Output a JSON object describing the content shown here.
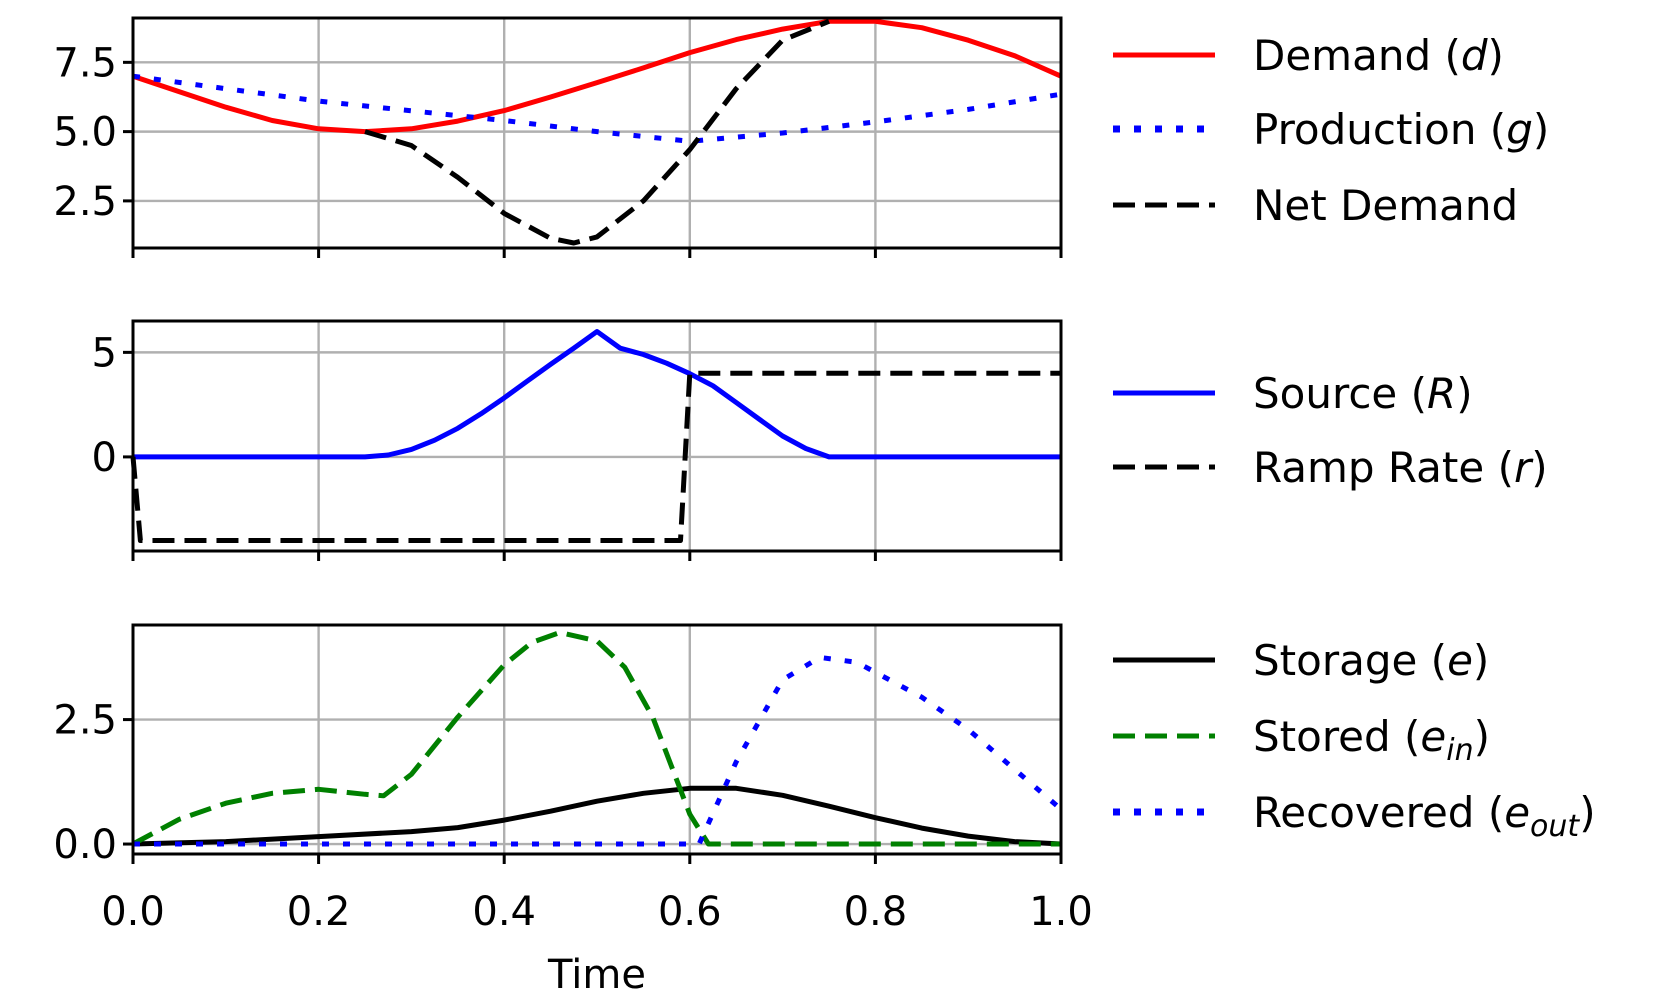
{
  "figure": {
    "xlabel": "Time",
    "x_ticks": [
      "0.0",
      "0.2",
      "0.4",
      "0.6",
      "0.8",
      "1.0"
    ]
  },
  "chart_data": [
    {
      "type": "line",
      "xlim": [
        0,
        1
      ],
      "ylim": [
        0.8,
        9.1
      ],
      "y_ticks": [
        2.5,
        5.0,
        7.5
      ],
      "y_tick_labels": [
        "2.5",
        "5.0",
        "7.5"
      ],
      "grid": true,
      "legend_placement": "right",
      "series": [
        {
          "name": "Demand (d)",
          "label_main": "Demand (",
          "label_var": "d",
          "label_sub": "",
          "label_end": ")",
          "color": "#ff0000",
          "style": "solid",
          "x": [
            0,
            0.05,
            0.1,
            0.15,
            0.2,
            0.25,
            0.3,
            0.35,
            0.4,
            0.45,
            0.5,
            0.55,
            0.6,
            0.65,
            0.7,
            0.75,
            0.8,
            0.85,
            0.9,
            0.95,
            1.0
          ],
          "y": [
            7.0,
            6.44,
            5.88,
            5.4,
            5.1,
            5.0,
            5.1,
            5.38,
            5.76,
            6.25,
            6.77,
            7.3,
            7.85,
            8.32,
            8.7,
            8.98,
            8.98,
            8.75,
            8.3,
            7.74,
            7.0
          ]
        },
        {
          "name": "Production (g)",
          "label_main": "Production (",
          "label_var": "g",
          "label_sub": "",
          "label_end": ")",
          "color": "#0000ff",
          "style": "dotted",
          "x": [
            0,
            0.1,
            0.2,
            0.3,
            0.4,
            0.5,
            0.6,
            0.7,
            0.8,
            0.9,
            1.0
          ],
          "y": [
            7.0,
            6.55,
            6.1,
            5.75,
            5.4,
            5.0,
            4.65,
            4.95,
            5.35,
            5.8,
            6.35
          ]
        },
        {
          "name": "Net Demand",
          "label_main": "Net Demand",
          "label_var": "",
          "label_sub": "",
          "label_end": "",
          "color": "#000000",
          "style": "dashed",
          "x": [
            0.25,
            0.3,
            0.35,
            0.4,
            0.45,
            0.475,
            0.5,
            0.55,
            0.6,
            0.65,
            0.7,
            0.75
          ],
          "y": [
            5.0,
            4.5,
            3.35,
            2.05,
            1.15,
            0.98,
            1.2,
            2.5,
            4.35,
            6.55,
            8.3,
            8.98
          ]
        }
      ]
    },
    {
      "type": "line",
      "xlim": [
        0,
        1
      ],
      "ylim": [
        -4.5,
        6.5
      ],
      "y_ticks": [
        0,
        5
      ],
      "y_tick_labels": [
        "0",
        "5"
      ],
      "grid": true,
      "legend_placement": "right",
      "series": [
        {
          "name": "Source (R)",
          "label_main": "Source (",
          "label_var": "R",
          "label_sub": "",
          "label_end": ")",
          "color": "#0000ff",
          "style": "solid",
          "x": [
            0,
            0.25,
            0.275,
            0.3,
            0.325,
            0.35,
            0.375,
            0.4,
            0.425,
            0.45,
            0.475,
            0.5,
            0.525,
            0.55,
            0.575,
            0.6,
            0.625,
            0.65,
            0.675,
            0.7,
            0.725,
            0.75,
            1.0
          ],
          "y": [
            0,
            0,
            0.09,
            0.36,
            0.8,
            1.37,
            2.06,
            2.82,
            3.63,
            4.43,
            5.2,
            6.0,
            5.2,
            4.9,
            4.48,
            3.98,
            3.4,
            2.6,
            1.8,
            1.0,
            0.4,
            0,
            0
          ]
        },
        {
          "name": "Ramp Rate (r)",
          "label_main": "Ramp Rate (",
          "label_var": "r",
          "label_sub": "",
          "label_end": ")",
          "color": "#000000",
          "style": "dashed",
          "x": [
            0,
            0.008,
            0.59,
            0.6,
            1.0
          ],
          "y": [
            0,
            -4.0,
            -4.0,
            4.0,
            4.0
          ]
        }
      ]
    },
    {
      "type": "line",
      "xlim": [
        0,
        1
      ],
      "ylim": [
        -0.2,
        4.4
      ],
      "y_ticks": [
        0.0,
        2.5
      ],
      "y_tick_labels": [
        "0.0",
        "2.5"
      ],
      "grid": true,
      "legend_placement": "right",
      "series": [
        {
          "name": "Storage (e)",
          "label_main": "Storage (",
          "label_var": "e",
          "label_sub": "",
          "label_end": ")",
          "color": "#000000",
          "style": "solid",
          "x": [
            0,
            0.1,
            0.2,
            0.3,
            0.35,
            0.4,
            0.45,
            0.5,
            0.55,
            0.6,
            0.65,
            0.7,
            0.75,
            0.8,
            0.85,
            0.9,
            0.95,
            1.0
          ],
          "y": [
            0,
            0.05,
            0.15,
            0.25,
            0.33,
            0.48,
            0.66,
            0.86,
            1.02,
            1.12,
            1.12,
            0.98,
            0.76,
            0.53,
            0.32,
            0.16,
            0.05,
            0
          ]
        },
        {
          "name": "Stored (e_in)",
          "label_main": "Stored (",
          "label_var": "e",
          "label_sub": "in",
          "label_end": ")",
          "color": "#008000",
          "style": "dashed",
          "x": [
            0,
            0.05,
            0.1,
            0.15,
            0.2,
            0.25,
            0.27,
            0.3,
            0.35,
            0.4,
            0.43,
            0.46,
            0.5,
            0.53,
            0.56,
            0.6,
            0.62,
            0.7,
            0.8,
            0.9,
            1.0
          ],
          "y": [
            0,
            0.5,
            0.82,
            1.02,
            1.1,
            1.0,
            0.97,
            1.4,
            2.55,
            3.6,
            4.05,
            4.25,
            4.08,
            3.55,
            2.55,
            0.6,
            0,
            0,
            0,
            0,
            0
          ]
        },
        {
          "name": "Recovered (e_out)",
          "label_main": "Recovered (",
          "label_var": "e",
          "label_sub": "out",
          "label_end": ")",
          "color": "#0000ff",
          "style": "dotted",
          "x": [
            0,
            0.1,
            0.2,
            0.3,
            0.4,
            0.5,
            0.6,
            0.61,
            0.65,
            0.7,
            0.74,
            0.78,
            0.8,
            0.85,
            0.9,
            0.95,
            1.0
          ],
          "y": [
            0,
            0,
            0,
            0,
            0,
            0,
            0,
            0,
            1.65,
            3.3,
            3.75,
            3.65,
            3.45,
            2.95,
            2.3,
            1.5,
            0.7
          ]
        }
      ]
    }
  ]
}
